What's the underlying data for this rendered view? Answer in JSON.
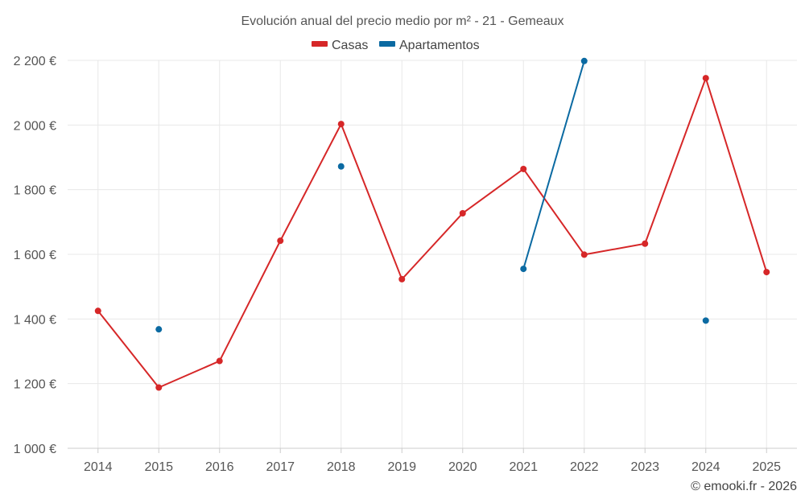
{
  "chart_data": {
    "type": "line",
    "title": "Evolución anual del precio medio por m² - 21 - Gemeaux",
    "categories": [
      "2014",
      "2015",
      "2016",
      "2017",
      "2018",
      "2019",
      "2020",
      "2021",
      "2022",
      "2023",
      "2024",
      "2025"
    ],
    "ylim": [
      1000,
      2200
    ],
    "yticks": [
      1000,
      1200,
      1400,
      1600,
      1800,
      2000,
      2200
    ],
    "ytick_labels": [
      "1 000 €",
      "1 200 €",
      "1 400 €",
      "1 600 €",
      "1 800 €",
      "2 000 €",
      "2 200 €"
    ],
    "xlabel": "",
    "ylabel": "",
    "grid": true,
    "legend_position": "top-center",
    "series": [
      {
        "name": "Casas",
        "color": "#d62728",
        "values": [
          1425,
          1188,
          1270,
          1642,
          2003,
          1523,
          1727,
          1864,
          1599,
          1633,
          2145,
          1545
        ]
      },
      {
        "name": "Apartamentos",
        "color": "#0b6aa2",
        "values": [
          null,
          1368,
          null,
          null,
          1872,
          null,
          null,
          1555,
          2198,
          null,
          1395,
          null
        ]
      }
    ]
  },
  "credit": "© emooki.fr - 2026"
}
